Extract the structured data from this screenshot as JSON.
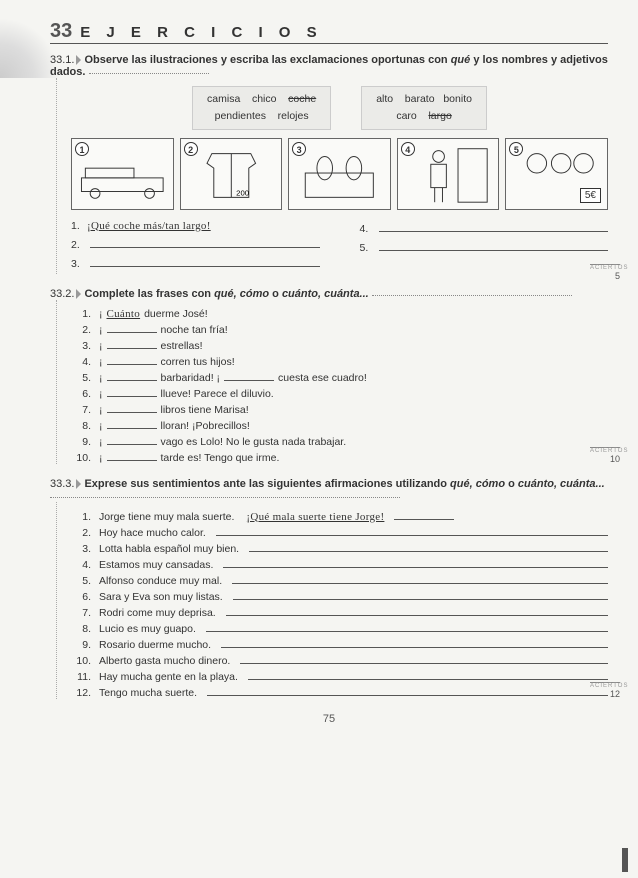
{
  "header": {
    "unit": "33",
    "title": "E J E R C I C I O S"
  },
  "ex1": {
    "num": "33.1.",
    "prompt_a": "Observe las ilustraciones y escriba las exclamaciones oportunas con ",
    "prompt_italic": "qué",
    "prompt_b": " y los nombres y adjetivos dados.",
    "box1_r1": [
      "camisa",
      "chico",
      "coche"
    ],
    "box1_r2": [
      "pendientes",
      "relojes"
    ],
    "box2_r1": [
      "alto",
      "barato",
      "bonito"
    ],
    "box2_r2": [
      "caro",
      "largo"
    ],
    "illus_nums": [
      "1",
      "2",
      "3",
      "4",
      "5"
    ],
    "price": "5€",
    "a1_num": "1.",
    "a1_fill": "¡Qué coche más/tan largo!",
    "a2_num": "2.",
    "a3_num": "3.",
    "a4_num": "4.",
    "a5_num": "5.",
    "score": "5"
  },
  "ex2": {
    "num": "33.2.",
    "prompt_a": "Complete las frases con ",
    "prompt_italic": "qué, cómo",
    "prompt_b": " o ",
    "prompt_italic2": "cuánto, cuánta...",
    "items": [
      {
        "n": "1.",
        "pre": "¡",
        "fill": "Cuánto",
        "post": " duerme José!"
      },
      {
        "n": "2.",
        "pre": "¡",
        "post": " noche tan fría!"
      },
      {
        "n": "3.",
        "pre": "¡",
        "post": " estrellas!"
      },
      {
        "n": "4.",
        "pre": "¡",
        "post": " corren tus hijos!"
      },
      {
        "n": "5.",
        "pre": "¡",
        "post": " barbaridad! ¡",
        "post2": " cuesta ese cuadro!"
      },
      {
        "n": "6.",
        "pre": "¡",
        "post": " llueve! Parece el diluvio."
      },
      {
        "n": "7.",
        "pre": "¡",
        "post": " libros tiene Marisa!"
      },
      {
        "n": "8.",
        "pre": "¡",
        "post": " lloran! ¡Pobrecillos!"
      },
      {
        "n": "9.",
        "pre": "¡",
        "post": " vago es Lolo! No le gusta nada trabajar."
      },
      {
        "n": "10.",
        "pre": "¡",
        "post": " tarde es! Tengo que irme."
      }
    ],
    "score": "10"
  },
  "ex3": {
    "num": "33.3.",
    "prompt_a": "Exprese sus sentimientos ante las siguientes afirmaciones utilizando ",
    "prompt_italic": "qué, cómo",
    "prompt_b": " o ",
    "prompt_italic2": "cuánto, cuánta...",
    "items": [
      {
        "n": "1.",
        "t": "Jorge tiene muy mala suerte.",
        "fill": "¡Qué mala suerte tiene Jorge!"
      },
      {
        "n": "2.",
        "t": "Hoy hace mucho calor."
      },
      {
        "n": "3.",
        "t": "Lotta habla español muy bien."
      },
      {
        "n": "4.",
        "t": "Estamos muy cansadas."
      },
      {
        "n": "5.",
        "t": "Alfonso conduce muy mal."
      },
      {
        "n": "6.",
        "t": "Sara y Eva son muy listas."
      },
      {
        "n": "7.",
        "t": "Rodri come muy deprisa."
      },
      {
        "n": "8.",
        "t": "Lucio es muy guapo."
      },
      {
        "n": "9.",
        "t": "Rosario duerme mucho."
      },
      {
        "n": "10.",
        "t": "Alberto gasta mucho dinero."
      },
      {
        "n": "11.",
        "t": "Hay mucha gente en la playa."
      },
      {
        "n": "12.",
        "t": "Tengo mucha suerte."
      }
    ],
    "score": "12"
  },
  "page": "75",
  "colors": {
    "bg": "#f5f5f2",
    "box": "#ebebe8",
    "line": "#555"
  }
}
